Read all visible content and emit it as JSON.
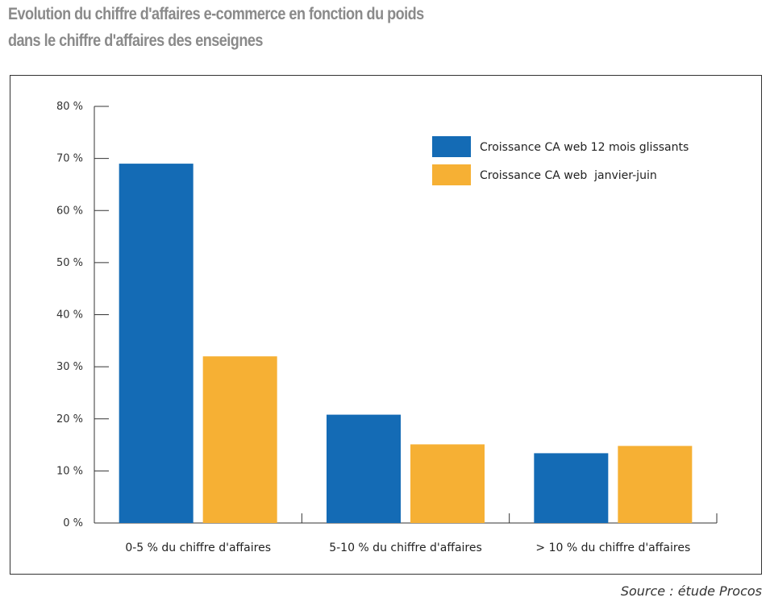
{
  "header": {
    "title_line1": "Evolution du chiffre d'affaires e-commerce en fonction du poids",
    "title_line2": "dans le chiffre d'affaires des enseignes"
  },
  "source": "Source : étude Procos",
  "colors": {
    "blue": "#146BB5",
    "orange": "#F6B034"
  },
  "chart_data": {
    "type": "bar",
    "categories": [
      "0-5 % du chiffre d'affaires",
      "5-10 % du chiffre d'affaires",
      "> 10 % du chiffre d'affaires"
    ],
    "series": [
      {
        "name": "Croissance CA web 12 mois glissants",
        "values": [
          69,
          20.8,
          13.4
        ]
      },
      {
        "name": "Croissance CA web  janvier-juin",
        "values": [
          32,
          15.1,
          14.8
        ]
      }
    ],
    "ylim": [
      0,
      80
    ],
    "yticks": [
      0,
      10,
      20,
      30,
      40,
      50,
      60,
      70,
      80
    ],
    "ytick_labels": [
      "0 %",
      "10 %",
      "20 %",
      "30 %",
      "40 %",
      "50 %",
      "60 %",
      "70 %",
      "80 %"
    ],
    "xlabel": "",
    "ylabel": "",
    "grid": false,
    "legend_position": "top-right"
  }
}
